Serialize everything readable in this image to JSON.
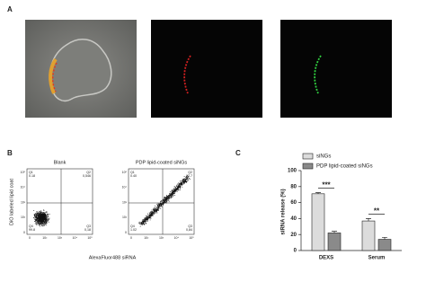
{
  "panel_a": {
    "label": "A"
  },
  "panel_b": {
    "label": "B",
    "y_axis_label": "DiO labeled lipid coat",
    "x_axis_label": "AlexaFluor488 siRNA",
    "axis_ticks": [
      "0",
      "10²",
      "10³",
      "10⁴",
      "10⁵"
    ],
    "plots": [
      {
        "title": "Blank",
        "q1": [
          "Q1",
          "0.18"
        ],
        "q2": [
          "Q2",
          "0,546"
        ],
        "q3": [
          "Q3",
          "0,18"
        ],
        "q4": [
          "Q4",
          "99.8"
        ]
      },
      {
        "title": "PDP lipid-coated siNGs",
        "q1": [
          "Q1",
          "0.40"
        ],
        "q2": [
          "Q2",
          "97.7"
        ],
        "q3": [
          "Q3",
          "0,84"
        ],
        "q4": [
          "Q4",
          "1.02"
        ]
      }
    ]
  },
  "chart_data": {
    "type": "bar",
    "label": "C",
    "ylabel": "siRNA release (%)",
    "categories": [
      "DEXS",
      "Serum"
    ],
    "series": [
      {
        "name": "siNGs",
        "color": "#dcdcdc",
        "values": [
          71,
          37
        ],
        "errors": [
          1.5,
          3
        ]
      },
      {
        "name": "PDP lipid-coated siNGs",
        "color": "#8a8a8a",
        "values": [
          22,
          14
        ],
        "errors": [
          2,
          2.5
        ]
      }
    ],
    "ylim": [
      0,
      100
    ],
    "yticks": [
      0,
      20,
      40,
      60,
      80,
      100
    ],
    "annotations": [
      "***",
      "**"
    ]
  }
}
